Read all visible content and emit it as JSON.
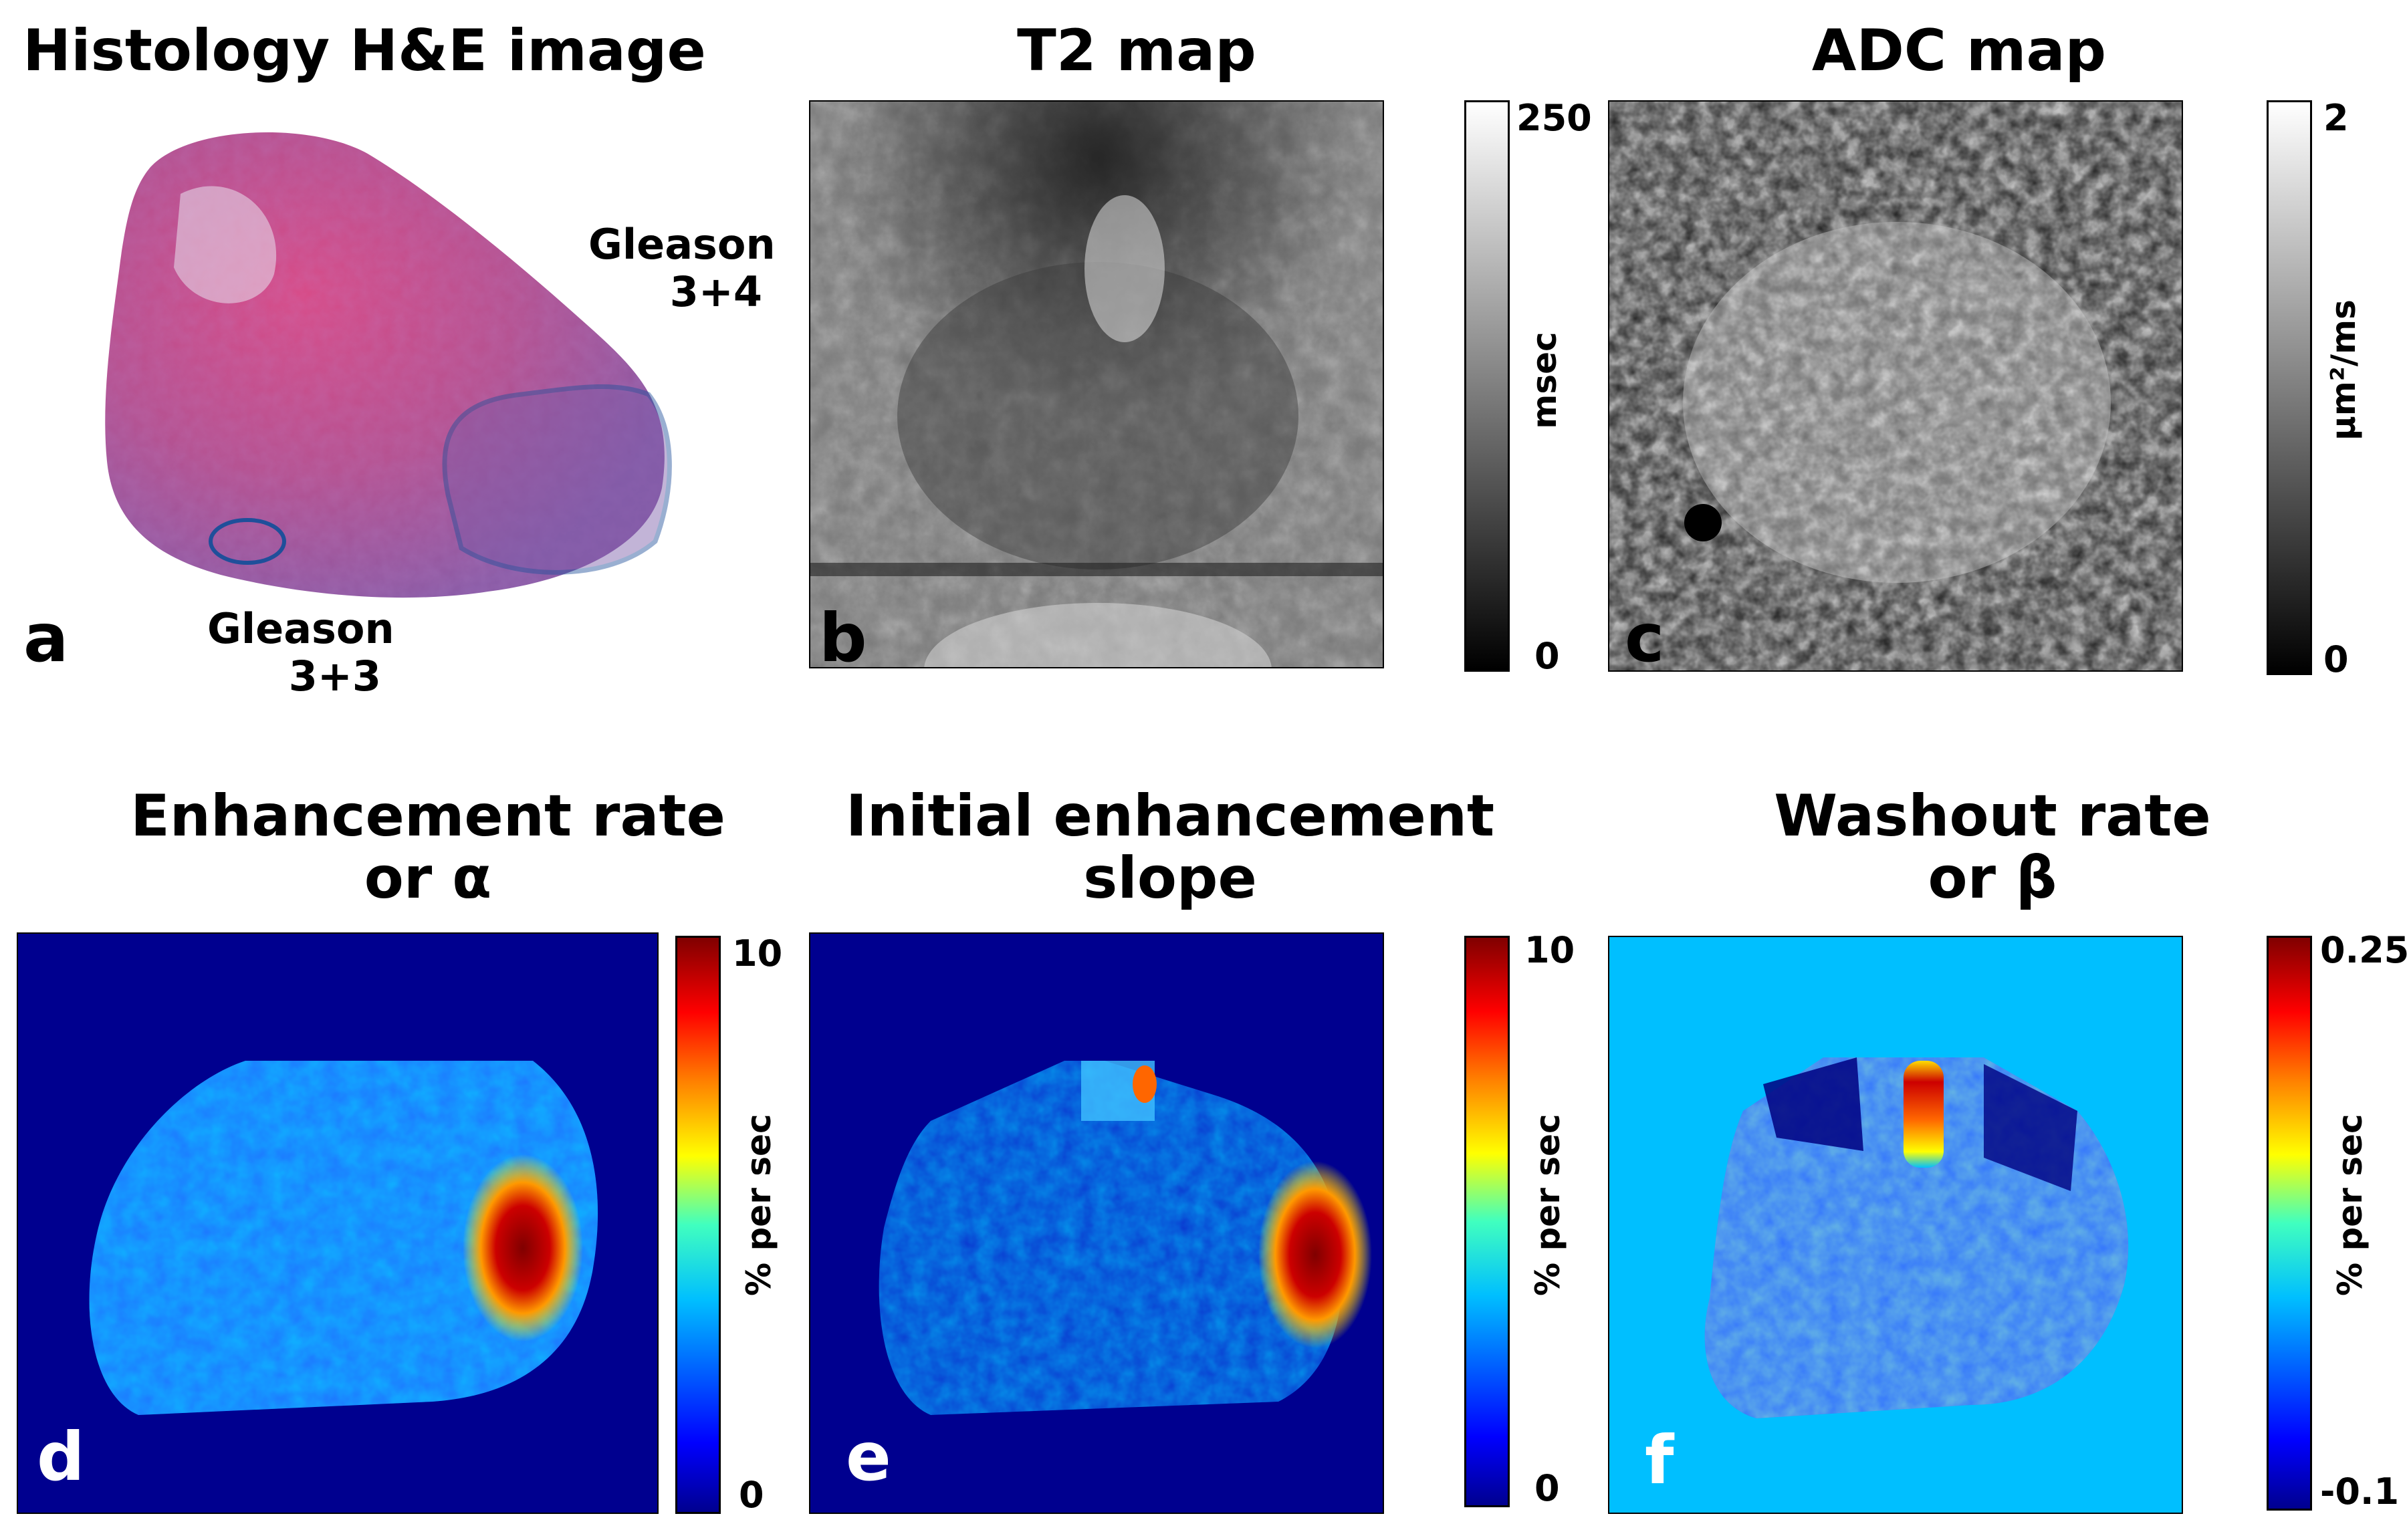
{
  "panels": {
    "a": {
      "title": "Histology H&E image",
      "letter": "a",
      "annotations": {
        "g34_line1": "Gleason",
        "g34_line2": "3+4",
        "g33_line1": "Gleason",
        "g33_line2": "3+3"
      }
    },
    "b": {
      "title": "T2 map",
      "letter": "b",
      "colorbar": {
        "max": "250",
        "min": "0",
        "unit": "msec"
      }
    },
    "c": {
      "title": "ADC map",
      "letter": "c",
      "colorbar": {
        "max": "2",
        "min": "0",
        "unit": "μm²/ms"
      }
    },
    "d": {
      "title_line1": "Enhancement rate",
      "title_line2": "or α",
      "letter": "d",
      "colorbar": {
        "max": "10",
        "min": "0",
        "unit": "% per sec"
      }
    },
    "e": {
      "title_line1": "Initial enhancement",
      "title_line2": "slope",
      "letter": "e",
      "colorbar": {
        "max": "10",
        "min": "0",
        "unit": "% per sec"
      }
    },
    "f": {
      "title_line1": "Washout rate",
      "title_line2": "or β",
      "letter": "f",
      "colorbar": {
        "max": "0.25",
        "min": "-0.1",
        "unit": "% per sec"
      }
    }
  },
  "colors": {
    "jet_background": "#00008f",
    "washout_background": "#00bfff",
    "he_tissue": "#b84a8c",
    "he_tumor": "#7a5aa8",
    "he_outline": "#1f4f9a"
  }
}
